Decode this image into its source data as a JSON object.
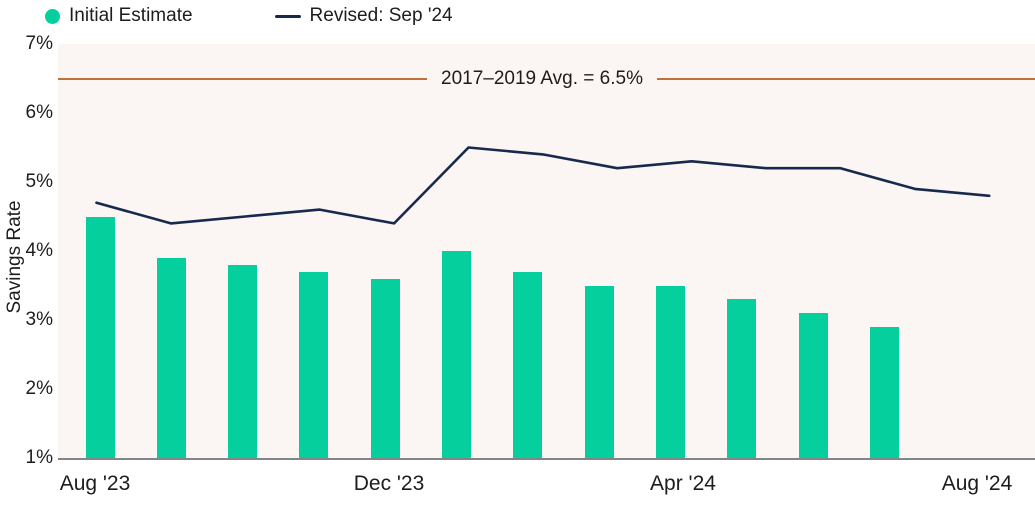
{
  "legend": {
    "initial_label": "Initial Estimate",
    "revised_label": "Revised: Sep '24"
  },
  "axes": {
    "y_label": "Savings Rate",
    "y_ticks": [
      "7%",
      "6%",
      "5%",
      "4%",
      "3%",
      "2%",
      "1%"
    ],
    "x_ticks": [
      {
        "label": "Aug '23",
        "month_index": 0
      },
      {
        "label": "Dec '23",
        "month_index": 4
      },
      {
        "label": "Apr '24",
        "month_index": 8
      },
      {
        "label": "Aug '24",
        "month_index": 12
      }
    ]
  },
  "colors": {
    "bar_green": "#06cf9e",
    "line_navy": "#17294d",
    "reference_orange": "#c1703c",
    "plot_background": "#fbf5f3",
    "axis_gray": "#858585",
    "text": "#1d1d1d"
  },
  "chart_data": {
    "type": "bar",
    "title": "",
    "xlabel": "",
    "ylabel": "Savings Rate",
    "ylim": [
      1,
      7
    ],
    "y_tick_format": "percent",
    "grid": false,
    "legend_position": "top-left",
    "categories": [
      "Aug '23",
      "Sep '23",
      "Oct '23",
      "Nov '23",
      "Dec '23",
      "Jan '24",
      "Feb '24",
      "Mar '24",
      "Apr '24",
      "May '24",
      "Jun '24",
      "Jul '24",
      "Aug '24"
    ],
    "series": [
      {
        "name": "Initial Estimate",
        "type": "bar",
        "color": "#06cf9e",
        "values": [
          4.5,
          3.9,
          3.8,
          3.7,
          3.6,
          4.0,
          3.7,
          3.5,
          3.5,
          3.3,
          3.1,
          2.9
        ]
      },
      {
        "name": "Revised: Sep '24",
        "type": "line",
        "color": "#17294d",
        "values": [
          4.7,
          4.4,
          4.5,
          4.6,
          4.4,
          5.5,
          5.4,
          5.2,
          5.3,
          5.2,
          5.2,
          4.9,
          4.8
        ]
      }
    ],
    "reference_line": {
      "value": 6.5,
      "label": "2017–2019 Avg. = 6.5%",
      "color": "#c1703c"
    }
  }
}
